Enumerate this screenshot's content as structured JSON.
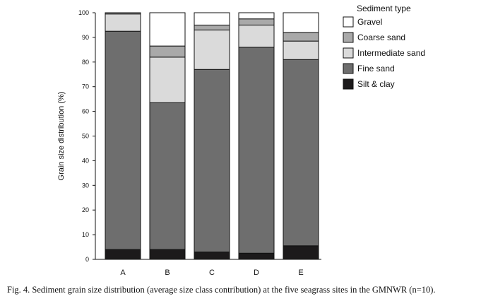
{
  "chart_data": {
    "type": "bar",
    "stacked": true,
    "categories": [
      "A",
      "B",
      "C",
      "D",
      "E"
    ],
    "ylabel": "Grain size distribution (%)",
    "ylim": [
      0,
      100
    ],
    "yticks": [
      0,
      10,
      20,
      30,
      40,
      50,
      60,
      70,
      80,
      90,
      100
    ],
    "grid": false,
    "legend": {
      "title": "Sediment type",
      "placement": "top-right, outside plot area"
    },
    "series": [
      {
        "name": "Silt & clay",
        "color": "#1c1a1b",
        "values": [
          4.0,
          4.0,
          3.0,
          2.5,
          5.5
        ]
      },
      {
        "name": "Fine sand",
        "color": "#6e6e6e",
        "values": [
          88.5,
          59.5,
          74.0,
          83.5,
          75.5
        ]
      },
      {
        "name": "Intermediate sand",
        "color": "#dadada",
        "values": [
          7.0,
          18.5,
          16.0,
          9.0,
          7.5
        ]
      },
      {
        "name": "Coarse sand",
        "color": "#a9a9a9",
        "values": [
          0.5,
          4.5,
          2.0,
          2.5,
          3.5
        ]
      },
      {
        "name": "Gravel",
        "color": "#ffffff",
        "values": [
          0.0,
          13.5,
          5.0,
          2.5,
          8.0
        ]
      }
    ]
  },
  "caption": "Fig. 4. Sediment grain size distribution (average size class contribution) at the five seagrass sites in the GMNWR (n=10)."
}
